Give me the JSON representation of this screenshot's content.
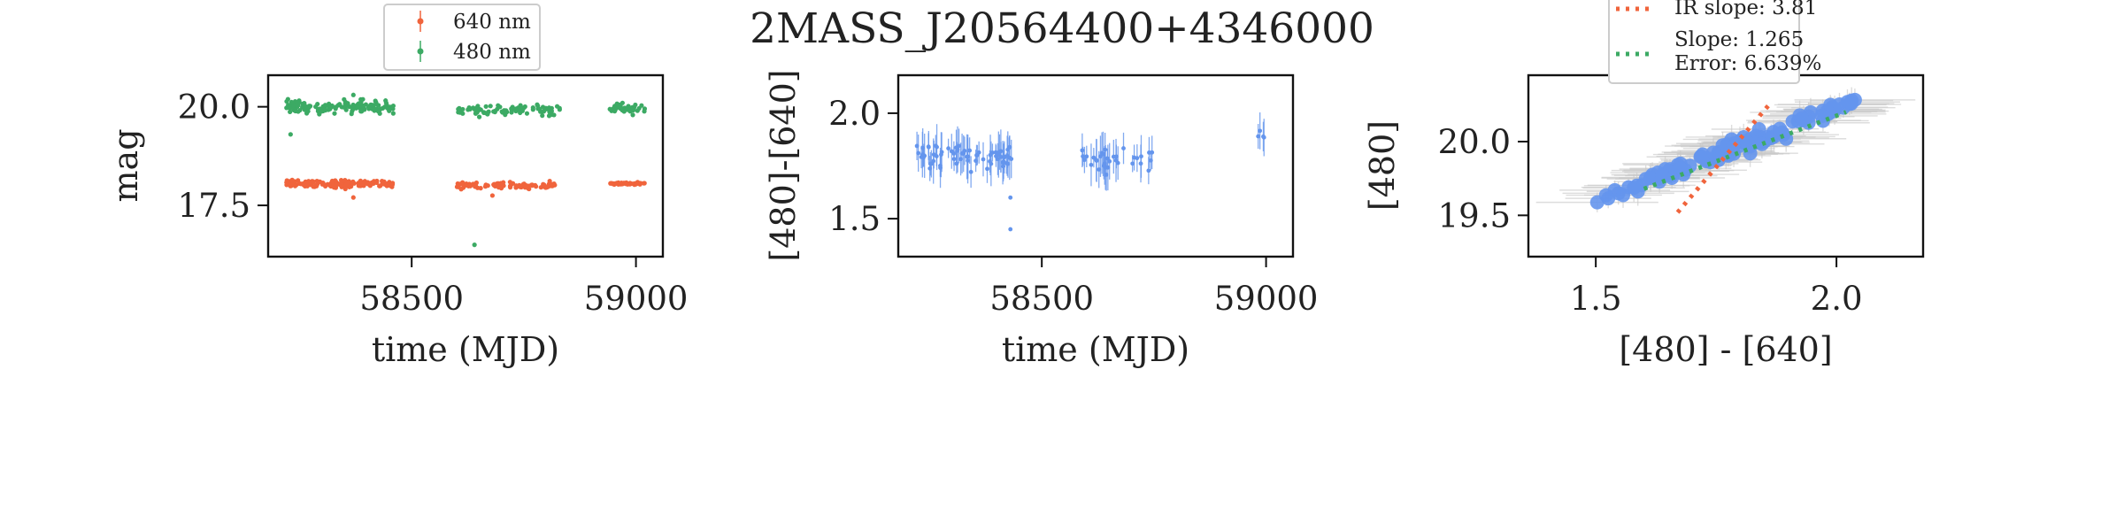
{
  "suptitle": "2MASS_J20564400+4346000",
  "colors": {
    "red": "#f0643c",
    "green": "#3caa64",
    "blue": "#6495ed",
    "err_gray": "#c8c8c8"
  },
  "chart_data": [
    {
      "type": "scatter",
      "panel": "lightcurve",
      "xlabel": "time (MJD)",
      "ylabel": "mag",
      "xlim": [
        58180,
        59060
      ],
      "ylim": [
        20.8,
        16.2
      ],
      "y_inverted": true,
      "xticks": [
        58500,
        59000
      ],
      "xtick_labels": [
        "58500",
        "59000"
      ],
      "yticks": [
        17.5,
        20.0
      ],
      "ytick_labels": [
        "17.5",
        "20.0"
      ],
      "legend_position": "top-center, above axes",
      "series": [
        {
          "name": "640 nm",
          "color": "#f0643c",
          "segments": [
            {
              "x_range": [
                58220,
                58460
              ],
              "y_center": 18.05,
              "y_spread": 0.18,
              "n": 150
            },
            {
              "x_range": [
                58600,
                58830
              ],
              "y_center": 18.0,
              "y_spread": 0.15,
              "n": 90
            },
            {
              "x_range": [
                58940,
                59020
              ],
              "y_center": 18.05,
              "y_spread": 0.06,
              "n": 40
            }
          ],
          "outliers": [
            {
              "x": 58370,
              "y": 17.7
            },
            {
              "x": 58680,
              "y": 17.75
            }
          ]
        },
        {
          "name": "480 nm",
          "color": "#3caa64",
          "segments": [
            {
              "x_range": [
                58220,
                58460
              ],
              "y_center": 20.0,
              "y_spread": 0.3,
              "n": 150
            },
            {
              "x_range": [
                58600,
                58830
              ],
              "y_center": 19.9,
              "y_spread": 0.25,
              "n": 90
            },
            {
              "x_range": [
                58940,
                59020
              ],
              "y_center": 19.95,
              "y_spread": 0.2,
              "n": 40
            }
          ],
          "outliers": [
            {
              "x": 58640,
              "y": 16.5
            },
            {
              "x": 58370,
              "y": 20.3
            },
            {
              "x": 58230,
              "y": 19.3
            }
          ]
        }
      ]
    },
    {
      "type": "scatter",
      "panel": "color_curve",
      "xlabel": "time (MJD)",
      "ylabel": "[480]-[640]",
      "xlim": [
        58180,
        59060
      ],
      "ylim": [
        2.18,
        1.32
      ],
      "y_inverted": true,
      "xticks": [
        58500,
        59000
      ],
      "xtick_labels": [
        "58500",
        "59000"
      ],
      "yticks": [
        1.5,
        2.0
      ],
      "ytick_labels": [
        "1.5",
        "2.0"
      ],
      "series": [
        {
          "name": "",
          "color": "#6495ed",
          "segments": [
            {
              "x_range": [
                58220,
                58440
              ],
              "y_center": 1.8,
              "y_spread": 0.12,
              "n": 70
            },
            {
              "x_range": [
                58580,
                58750
              ],
              "y_center": 1.78,
              "y_spread": 0.1,
              "n": 35
            },
            {
              "x_range": [
                58970,
                59020
              ],
              "y_center": 1.9,
              "y_spread": 0.05,
              "n": 4
            }
          ],
          "outliers": [
            {
              "x": 58430,
              "y": 1.45
            },
            {
              "x": 58430,
              "y": 1.6
            }
          ]
        }
      ]
    },
    {
      "type": "scatter",
      "panel": "color_magnitude",
      "xlabel": "[480] - [640]",
      "ylabel": "[480]",
      "xlim": [
        1.36,
        2.18
      ],
      "ylim": [
        20.45,
        19.22
      ],
      "y_inverted": true,
      "xticks": [
        1.5,
        2.0
      ],
      "xtick_labels": [
        "1.5",
        "2.0"
      ],
      "yticks": [
        19.5,
        20.0
      ],
      "ytick_labels": [
        "19.5",
        "20.0"
      ],
      "legend_position": "top-center, above axes",
      "points": {
        "color": "#6495ed",
        "x_range": [
          1.48,
          2.04
        ],
        "trend_slope": 1.265,
        "n": 110
      },
      "lines": [
        {
          "label": "IR slope: 3.81",
          "color": "#f0643c",
          "style": "dotted",
          "x": [
            1.67,
            1.86
          ],
          "y": [
            19.52,
            20.25
          ]
        },
        {
          "label": "Slope: 1.265",
          "sublabel": "Error: 6.639%",
          "color": "#3caa64",
          "style": "dotted",
          "x": [
            1.6,
            2.02
          ],
          "y": [
            19.68,
            20.2
          ]
        }
      ]
    }
  ]
}
